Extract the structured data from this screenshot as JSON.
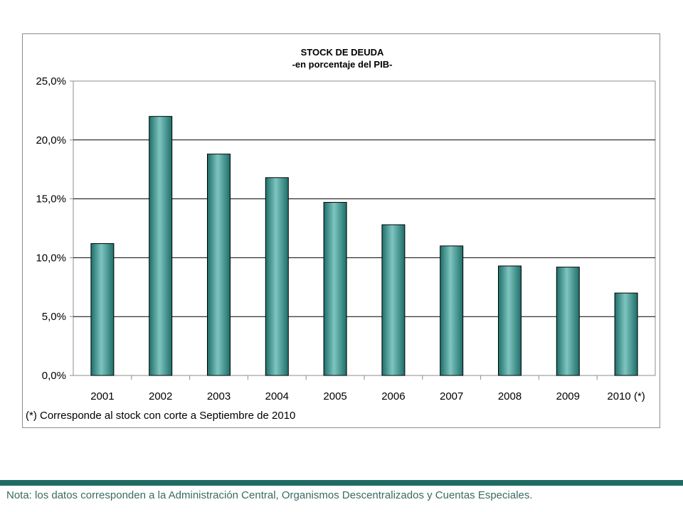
{
  "chart_data": {
    "type": "bar",
    "title": "STOCK DE DEUDA",
    "subtitle": "-en porcentaje del PIB-",
    "categories": [
      "2001",
      "2002",
      "2003",
      "2004",
      "2005",
      "2006",
      "2007",
      "2008",
      "2009",
      "2010 (*)"
    ],
    "values": [
      11.2,
      22.0,
      18.8,
      16.8,
      14.7,
      12.8,
      11.0,
      9.3,
      9.2,
      7.0
    ],
    "ylim": [
      0,
      25
    ],
    "yticks": [
      "0,0%",
      "5,0%",
      "10,0%",
      "15,0%",
      "20,0%",
      "25,0%"
    ],
    "grid": true,
    "bar_color": "#2f9590",
    "footnote": "(*) Corresponde al stock con corte a Septiembre de 2010"
  },
  "note": "Nota: los datos corresponden a la Administración Central, Organismos Descentralizados y Cuentas Especiales.",
  "colors": {
    "band": "#1f6b63",
    "note_text": "#3a6a62",
    "bar": "#2f9590"
  }
}
